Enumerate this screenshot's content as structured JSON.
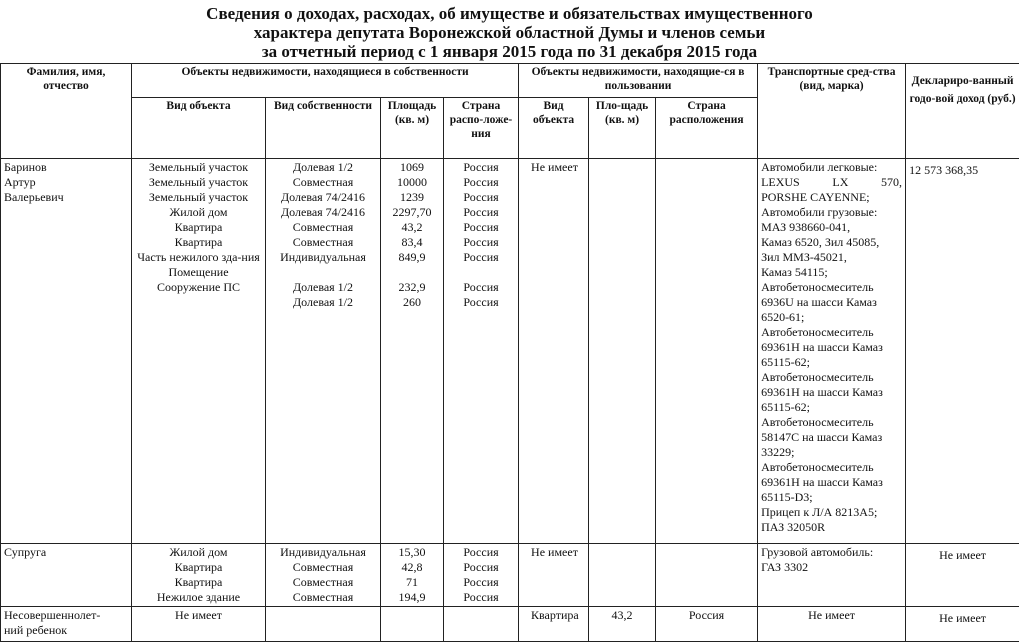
{
  "title": [
    "Сведения о доходах, расходах, об имуществе и обязательствах имущественного",
    "характера депутата Воронежской областной Думы и членов семьи",
    "за отчетный период с 1 января 2015 года по 31 декабря 2015 года"
  ],
  "headers": {
    "name": "Фамилия, имя, отчество",
    "owned": "Объекты недвижимости, находящиеся в собственности",
    "used": "Объекты недвижимости, находящие-ся в пользовании",
    "transport": "Транспортные сред-ства (вид, марка)",
    "income": "Деклариро-ванный годо-вой доход (руб.)",
    "owned_type": "Вид объекта",
    "owned_ownership": "Вид собственности",
    "owned_area": "Площадь (кв. м)",
    "owned_country": "Страна распо-ложе-ния",
    "used_type": "Вид объекта",
    "used_area": "Пло-щадь (кв. м)",
    "used_country": "Страна расположения"
  },
  "rows": [
    {
      "name": [
        "Баринов",
        "Артур",
        "Валерьевич"
      ],
      "owned": [
        [
          "Земельный участок",
          "Долевая 1/2",
          "1069",
          "Россия"
        ],
        [
          "Земельный участок",
          "Совместная",
          "10000",
          "Россия"
        ],
        [
          "Земельный участок",
          "Долевая 74/2416",
          "1239",
          "Россия"
        ],
        [
          "Жилой дом",
          "Долевая 74/2416",
          "2297,70",
          "Россия"
        ],
        [
          "Квартира",
          "Совместная",
          "43,2",
          "Россия"
        ],
        [
          "Квартира",
          "Совместная",
          "83,4",
          "Россия"
        ],
        [
          "Часть нежилого зда-ния",
          "Индивидуальная",
          "849,9",
          "Россия"
        ],
        [
          "Помещение",
          "Долевая 1/2",
          "232,9",
          "Россия"
        ],
        [
          "Сооружение  ПС",
          "Долевая 1/2",
          "260",
          "Россия"
        ]
      ],
      "used": {
        "type": "Не имеет",
        "area": "",
        "country": ""
      },
      "transport": [
        "Автомобили легковые:",
        "LEXUS LX 570,",
        "PORSHE CAYENNE;",
        "Автомобили грузовые:",
        "МАЗ 938660-041,",
        "Камаз 6520, Зил 45085,",
        "Зил ММЗ-45021,",
        "Камаз 54115;",
        "Автобетоносмеситель",
        "6936U на шасси Камаз",
        "6520-61;",
        "Автобетоносмеситель",
        "69361H на шасси Камаз",
        "65115-62;",
        "Автобетоносмеситель",
        "69361H на шасси Камаз",
        "65115-62;",
        "Автобетоносмеситель",
        "58147C на шасси Камаз",
        "33229;",
        "Автобетоносмеситель",
        "69361H на шасси Камаз",
        "65115-D3;",
        "Прицеп к Л/А 8213А5;",
        "ПАЗ 32050R"
      ],
      "income": "12 573 368,35"
    },
    {
      "name": [
        "Супруга"
      ],
      "owned": [
        [
          "Жилой дом",
          "Индивидуальная",
          "15,30",
          "Россия"
        ],
        [
          "Квартира",
          "Совместная",
          "42,8",
          "Россия"
        ],
        [
          "Квартира",
          "Совместная",
          "71",
          "Россия"
        ],
        [
          "Нежилое здание",
          "Совместная",
          "194,9",
          "Россия"
        ]
      ],
      "used": {
        "type": "Не имеет",
        "area": "",
        "country": ""
      },
      "transport": [
        "Грузовой автомобиль:",
        "ГАЗ 3302"
      ],
      "income": "Не имеет"
    },
    {
      "name": [
        "Несовершеннолет-",
        "ний ребенок"
      ],
      "owned": [
        [
          "Не имеет",
          "",
          "",
          ""
        ]
      ],
      "used": {
        "type": "Квартира",
        "area": "43,2",
        "country": "Россия"
      },
      "transport": [
        "Не имеет"
      ],
      "income": "Не имеет"
    }
  ]
}
